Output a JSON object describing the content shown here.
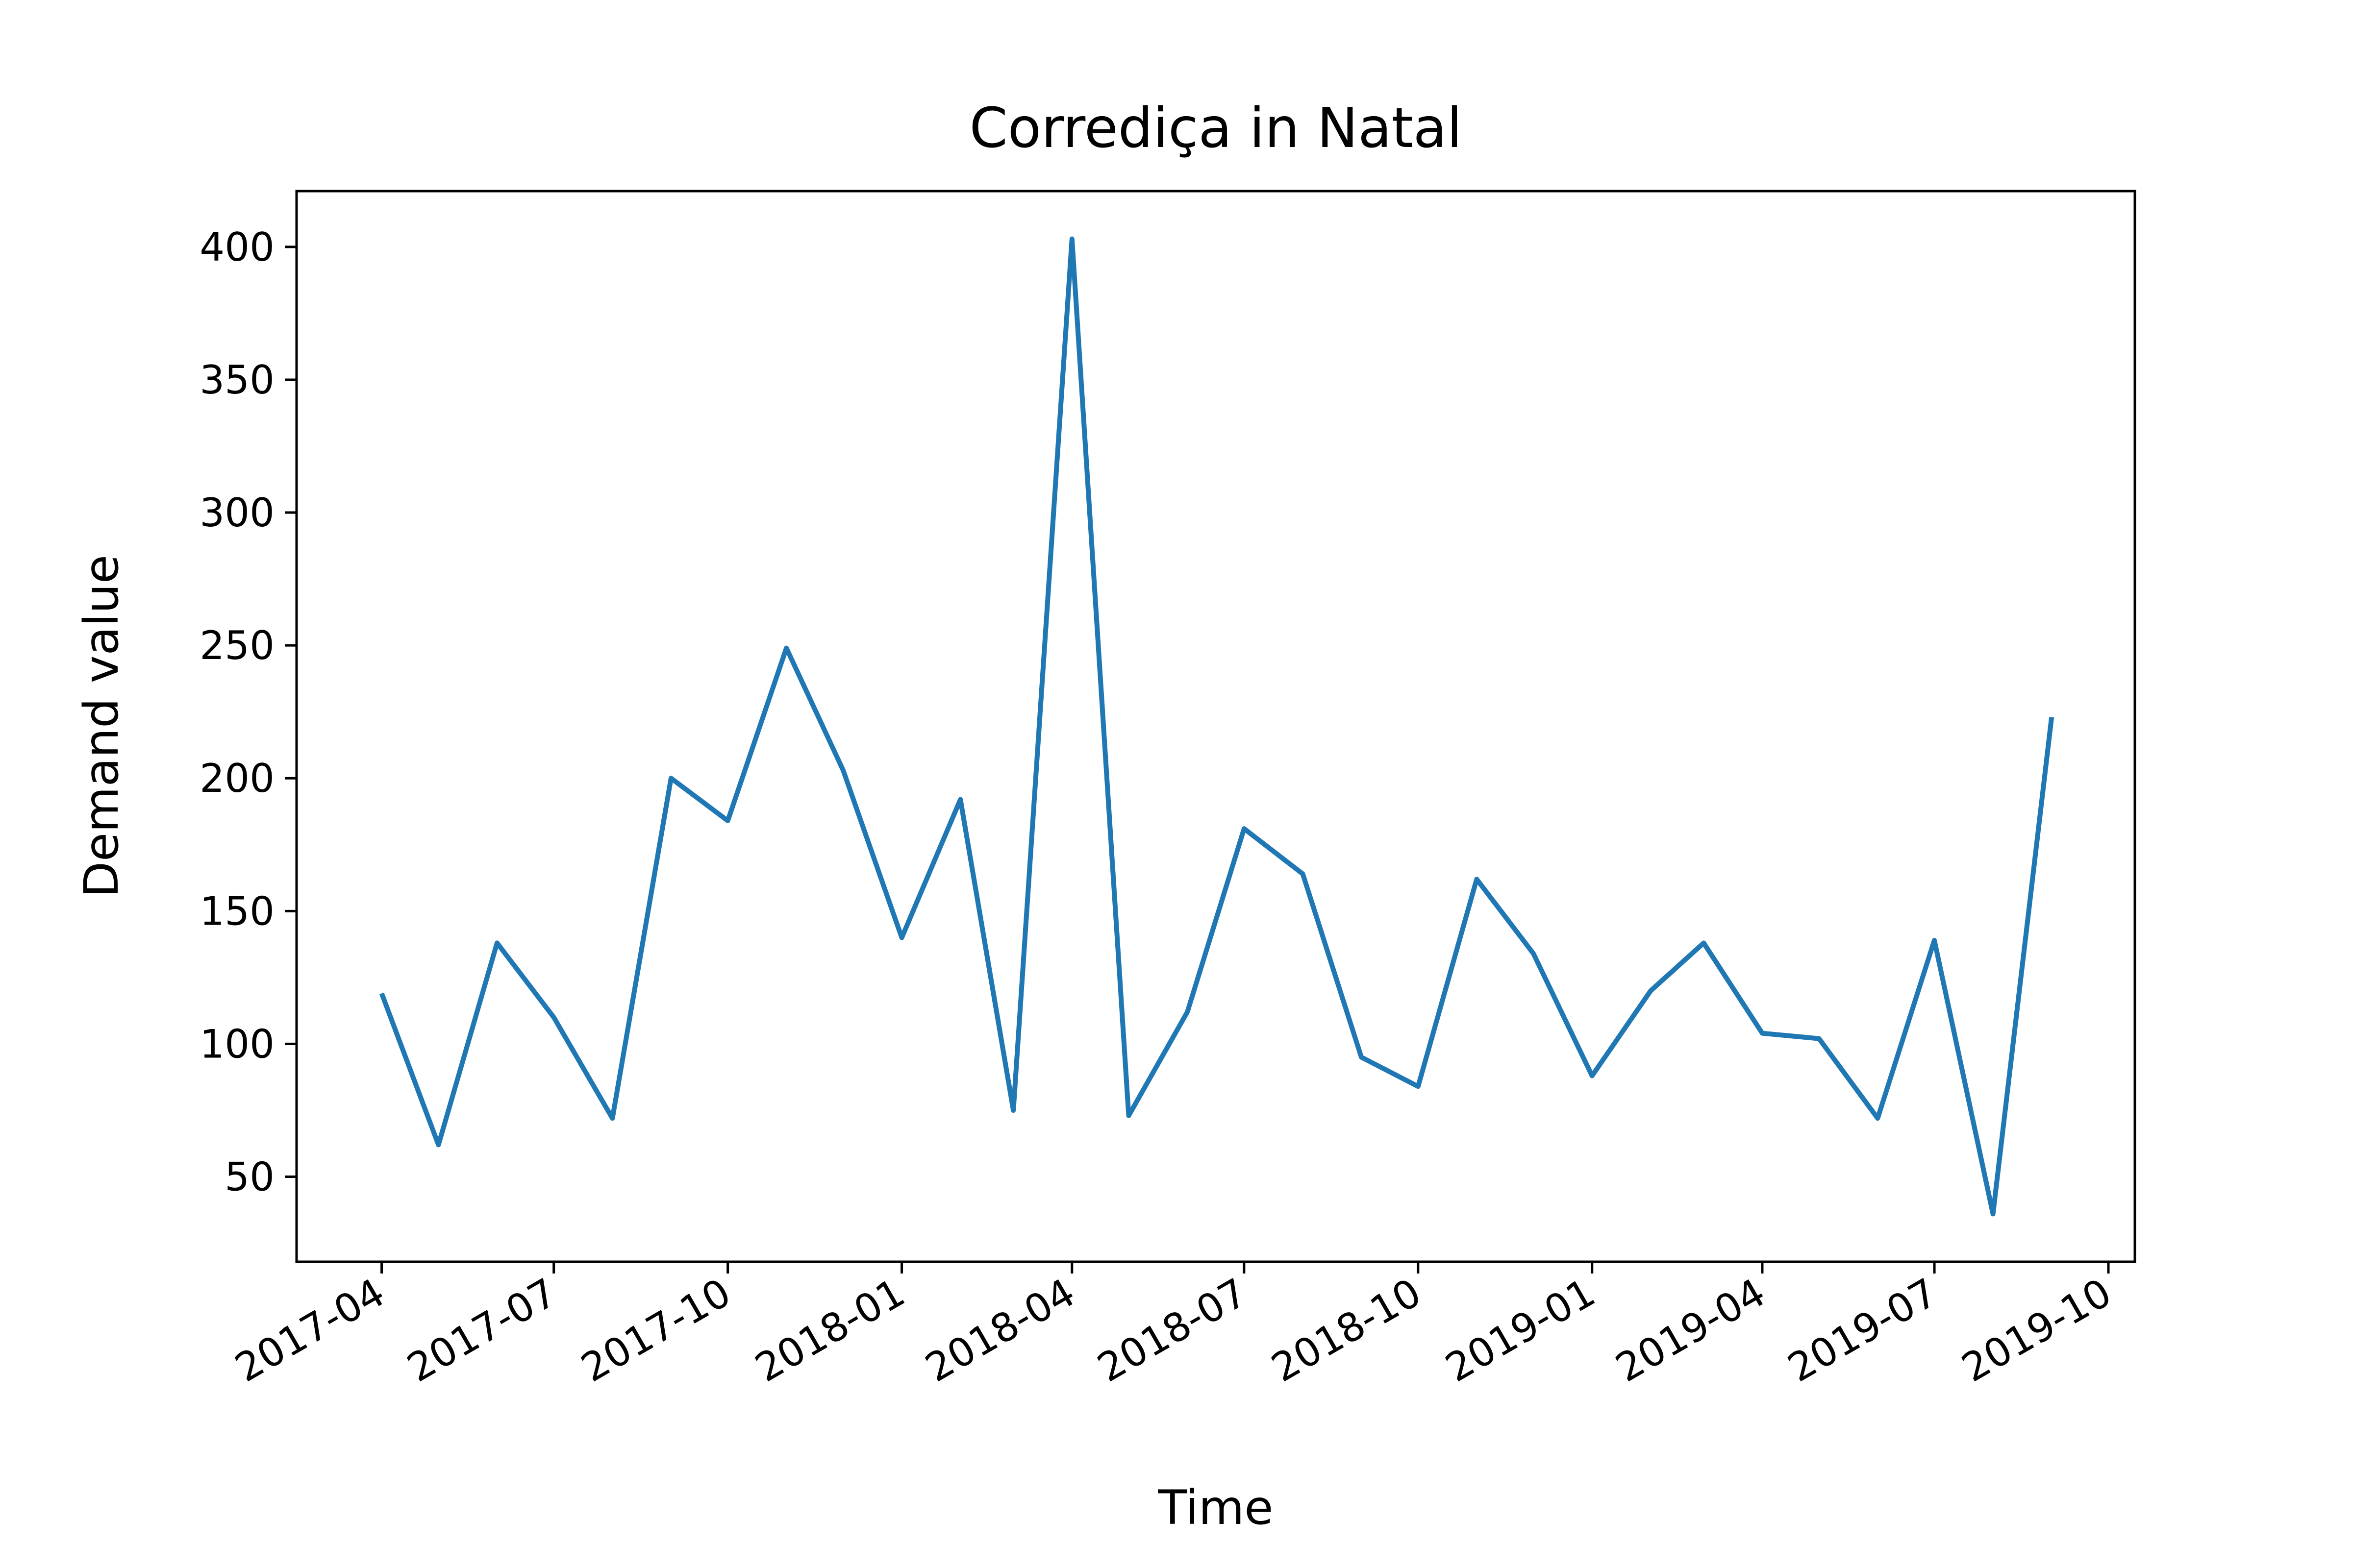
{
  "chart_data": {
    "type": "line",
    "title": "Corrediça in Natal",
    "xlabel": "Time",
    "ylabel": "Demand value",
    "x_ticks": [
      "2017-04",
      "2017-07",
      "2017-10",
      "2018-01",
      "2018-04",
      "2018-07",
      "2018-10",
      "2019-01",
      "2019-04",
      "2019-07",
      "2019-10"
    ],
    "y_ticks": [
      50,
      100,
      150,
      200,
      250,
      300,
      350,
      400
    ],
    "xlim": [
      "2017-02-15",
      "2019-10-15"
    ],
    "ylim": [
      18,
      421
    ],
    "grid": false,
    "color": "#1f77b4",
    "series": [
      {
        "x": [
          "2017-04-01",
          "2017-05-01",
          "2017-06-01",
          "2017-07-01",
          "2017-08-01",
          "2017-09-01",
          "2017-10-01",
          "2017-11-01",
          "2017-12-01",
          "2018-01-01",
          "2018-02-01",
          "2018-03-01",
          "2018-04-01",
          "2018-05-01",
          "2018-06-01",
          "2018-07-01",
          "2018-08-01",
          "2018-09-01",
          "2018-10-01",
          "2018-11-01",
          "2018-12-01",
          "2019-01-01",
          "2019-02-01",
          "2019-03-01",
          "2019-04-01",
          "2019-05-01",
          "2019-06-01",
          "2019-07-01",
          "2019-08-01",
          "2019-09-01"
        ],
        "values": [
          119,
          62,
          138,
          110,
          72,
          200,
          184,
          249,
          203,
          140,
          192,
          75,
          403,
          73,
          112,
          181,
          164,
          95,
          84,
          162,
          134,
          88,
          120,
          138,
          104,
          102,
          72,
          139,
          36,
          223
        ]
      }
    ]
  }
}
